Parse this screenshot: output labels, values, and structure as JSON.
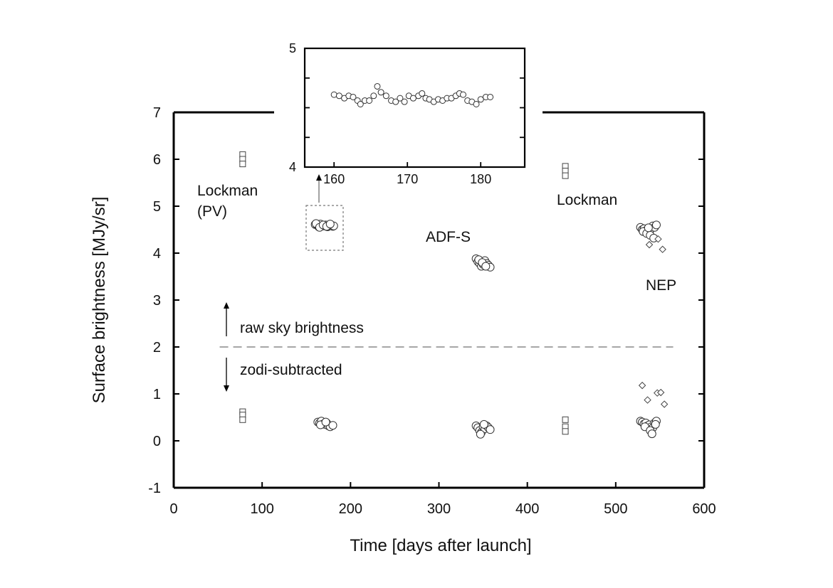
{
  "chart_data": [
    {
      "type": "scatter",
      "xlabel": "Time [days after launch]",
      "ylabel": "Surface brightness [MJy/sr]",
      "xlim": [
        0,
        600
      ],
      "ylim": [
        -1,
        7
      ],
      "xticks": [
        "0",
        "100",
        "200",
        "300",
        "400",
        "500",
        "600"
      ],
      "yticks": [
        "-1",
        "0",
        "1",
        "2",
        "3",
        "4",
        "5",
        "6",
        "7"
      ],
      "grid": false,
      "annotations": {
        "lockman_pv": [
          "Lockman",
          "(PV)"
        ],
        "adfs": "ADF-S",
        "lockman": "Lockman",
        "nep": "NEP",
        "raw_sky": "raw sky brightness",
        "zodi_sub": "zodi-subtracted"
      },
      "divider_y": 2,
      "series": [
        {
          "marker": "square",
          "points": [
            [
              78,
              6.1
            ],
            [
              78,
              6.0
            ],
            [
              78,
              5.9
            ],
            [
              78,
              0.62
            ],
            [
              78,
              0.55
            ],
            [
              78,
              0.45
            ],
            [
              443,
              5.85
            ],
            [
              443,
              5.75
            ],
            [
              443,
              5.65
            ],
            [
              443,
              0.45
            ],
            [
              443,
              0.3
            ],
            [
              443,
              0.2
            ]
          ]
        },
        {
          "marker": "circle",
          "points": [
            [
              160,
              4.61
            ],
            [
              162,
              4.6
            ],
            [
              164,
              4.56
            ],
            [
              166,
              4.62
            ],
            [
              168,
              4.58
            ],
            [
              170,
              4.58
            ],
            [
              172,
              4.6
            ],
            [
              174,
              4.56
            ],
            [
              176,
              4.58
            ],
            [
              178,
              4.6
            ],
            [
              180,
              4.57
            ],
            [
              181,
              4.58
            ],
            [
              161,
              4.63
            ],
            [
              165,
              4.55
            ],
            [
              169,
              4.6
            ],
            [
              173,
              4.57
            ],
            [
              177,
              4.62
            ],
            [
              163,
              0.4
            ],
            [
              165,
              0.38
            ],
            [
              167,
              0.42
            ],
            [
              169,
              0.36
            ],
            [
              171,
              0.35
            ],
            [
              173,
              0.38
            ],
            [
              175,
              0.32
            ],
            [
              177,
              0.3
            ],
            [
              180,
              0.33
            ],
            [
              166,
              0.34
            ],
            [
              172,
              0.4
            ],
            [
              342,
              3.88
            ],
            [
              344,
              3.82
            ],
            [
              346,
              3.78
            ],
            [
              348,
              3.72
            ],
            [
              350,
              3.76
            ],
            [
              352,
              3.84
            ],
            [
              354,
              3.78
            ],
            [
              356,
              3.74
            ],
            [
              358,
              3.7
            ],
            [
              345,
              3.86
            ],
            [
              349,
              3.8
            ],
            [
              353,
              3.72
            ],
            [
              342,
              0.32
            ],
            [
              344,
              0.28
            ],
            [
              346,
              0.22
            ],
            [
              348,
              0.18
            ],
            [
              350,
              0.3
            ],
            [
              352,
              0.26
            ],
            [
              354,
              0.32
            ],
            [
              356,
              0.28
            ],
            [
              358,
              0.24
            ],
            [
              347,
              0.14
            ],
            [
              351,
              0.35
            ],
            [
              528,
              4.55
            ],
            [
              530,
              4.5
            ],
            [
              532,
              4.52
            ],
            [
              534,
              4.48
            ],
            [
              536,
              4.5
            ],
            [
              538,
              4.45
            ],
            [
              540,
              4.52
            ],
            [
              542,
              4.58
            ],
            [
              544,
              4.55
            ],
            [
              546,
              4.6
            ],
            [
              531,
              4.46
            ],
            [
              535,
              4.42
            ],
            [
              539,
              4.38
            ],
            [
              543,
              4.32
            ],
            [
              537,
              4.54
            ],
            [
              528,
              0.42
            ],
            [
              530,
              0.4
            ],
            [
              532,
              0.36
            ],
            [
              534,
              0.38
            ],
            [
              536,
              0.32
            ],
            [
              538,
              0.34
            ],
            [
              540,
              0.3
            ],
            [
              542,
              0.28
            ],
            [
              544,
              0.38
            ],
            [
              546,
              0.42
            ],
            [
              533,
              0.3
            ],
            [
              539,
              0.22
            ],
            [
              541,
              0.15
            ],
            [
              545,
              0.35
            ]
          ]
        },
        {
          "marker": "diamond",
          "points": [
            [
              538,
              4.18
            ],
            [
              548,
              4.3
            ],
            [
              553,
              4.08
            ],
            [
              530,
              1.18
            ],
            [
              536,
              0.87
            ],
            [
              547,
              1.02
            ],
            [
              551,
              1.03
            ],
            [
              555,
              0.78
            ]
          ]
        }
      ]
    },
    {
      "type": "scatter",
      "xlim": [
        156,
        186
      ],
      "ylim": [
        4,
        5
      ],
      "xticks": [
        "160",
        "170",
        "180"
      ],
      "yticks": [
        "4",
        "5"
      ],
      "grid": false,
      "series": [
        {
          "marker": "circle",
          "points": [
            [
              160.0,
              4.61
            ],
            [
              160.7,
              4.6
            ],
            [
              161.4,
              4.58
            ],
            [
              162.0,
              4.6
            ],
            [
              162.6,
              4.59
            ],
            [
              163.2,
              4.56
            ],
            [
              163.6,
              4.53
            ],
            [
              164.2,
              4.56
            ],
            [
              164.8,
              4.56
            ],
            [
              165.4,
              4.6
            ],
            [
              165.9,
              4.68
            ],
            [
              166.4,
              4.63
            ],
            [
              167.1,
              4.6
            ],
            [
              167.8,
              4.56
            ],
            [
              168.4,
              4.55
            ],
            [
              169.0,
              4.58
            ],
            [
              169.6,
              4.55
            ],
            [
              170.2,
              4.6
            ],
            [
              170.8,
              4.58
            ],
            [
              171.5,
              4.6
            ],
            [
              172.0,
              4.62
            ],
            [
              172.5,
              4.58
            ],
            [
              173.0,
              4.57
            ],
            [
              173.6,
              4.55
            ],
            [
              174.2,
              4.57
            ],
            [
              174.8,
              4.56
            ],
            [
              175.4,
              4.58
            ],
            [
              176.0,
              4.58
            ],
            [
              176.6,
              4.6
            ],
            [
              177.1,
              4.62
            ],
            [
              177.6,
              4.61
            ],
            [
              178.2,
              4.56
            ],
            [
              178.8,
              4.55
            ],
            [
              179.4,
              4.53
            ],
            [
              180.0,
              4.57
            ],
            [
              180.7,
              4.59
            ],
            [
              181.3,
              4.59
            ]
          ]
        }
      ]
    }
  ]
}
